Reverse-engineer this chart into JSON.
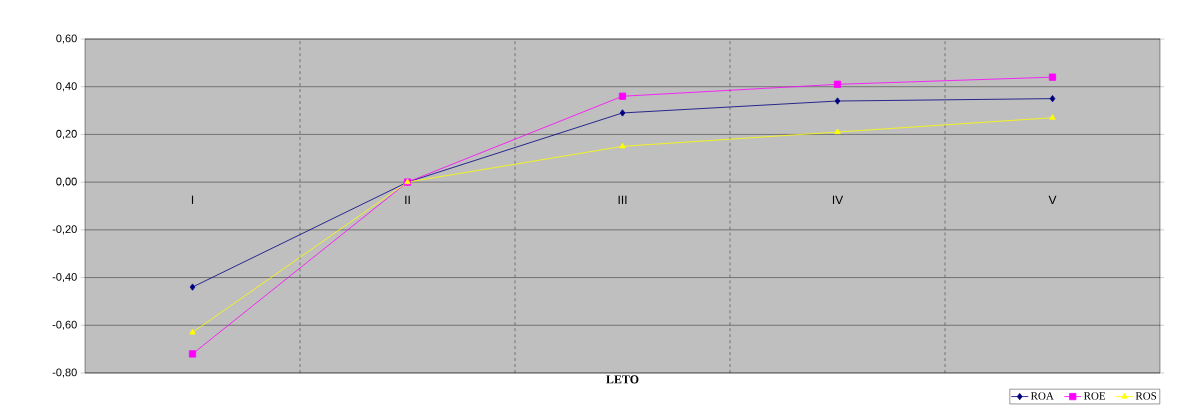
{
  "chart_data": {
    "type": "line",
    "xlabel": "LETO",
    "categories": [
      "I",
      "II",
      "III",
      "IV",
      "V"
    ],
    "series": [
      {
        "name": "ROA",
        "color": "#000080",
        "marker": "diamond",
        "values": [
          -0.44,
          0.0,
          0.29,
          0.34,
          0.35
        ]
      },
      {
        "name": "ROE",
        "color": "#ff00ff",
        "marker": "square",
        "values": [
          -0.72,
          0.0,
          0.36,
          0.41,
          0.44
        ]
      },
      {
        "name": "ROS",
        "color": "#ffff00",
        "marker": "triangle",
        "values": [
          -0.63,
          0.0,
          0.15,
          0.21,
          0.27
        ]
      }
    ],
    "ylim": [
      -0.8,
      0.6
    ],
    "yticks": [
      {
        "value": -0.8,
        "label": "-0,80"
      },
      {
        "value": -0.6,
        "label": "-0,60"
      },
      {
        "value": -0.4,
        "label": "-0,40"
      },
      {
        "value": -0.2,
        "label": "-0,20"
      },
      {
        "value": 0,
        "label": "0,00"
      },
      {
        "value": 0.2,
        "label": "0,20"
      },
      {
        "value": 0.4,
        "label": "0,40"
      },
      {
        "value": 0.6,
        "label": "0,60"
      }
    ],
    "grid": true,
    "legend": "bottom right"
  }
}
